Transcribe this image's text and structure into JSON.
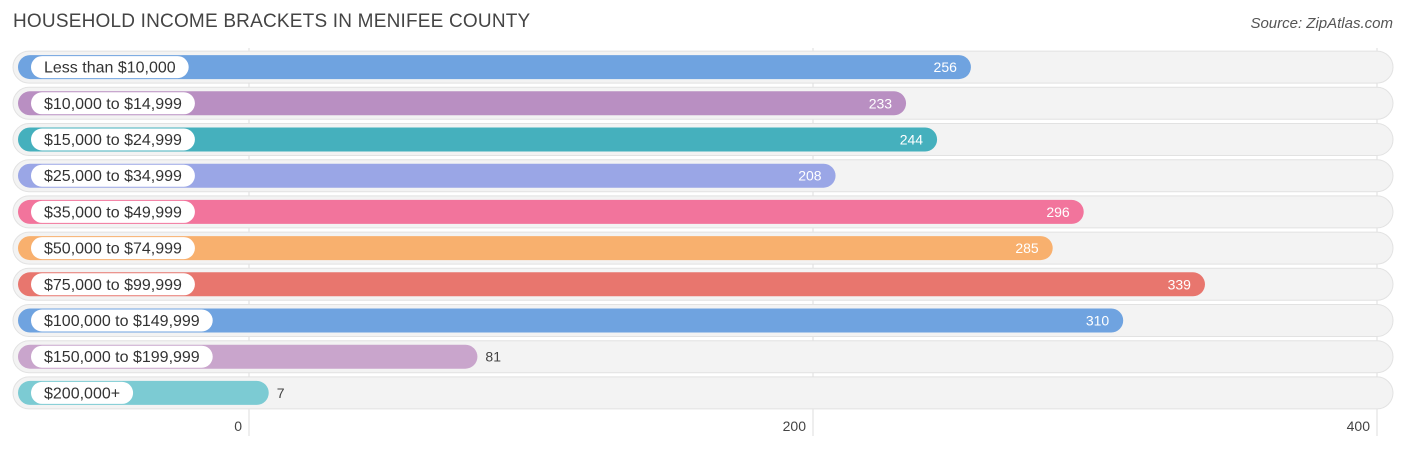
{
  "title": "HOUSEHOLD INCOME BRACKETS IN MENIFEE COUNTY",
  "source": "Source: ZipAtlas.com",
  "chart_data": {
    "type": "bar",
    "orientation": "horizontal",
    "title": "HOUSEHOLD INCOME BRACKETS IN MENIFEE COUNTY",
    "categories": [
      "Less than $10,000",
      "$10,000 to $14,999",
      "$15,000 to $24,999",
      "$25,000 to $34,999",
      "$35,000 to $49,999",
      "$50,000 to $74,999",
      "$75,000 to $99,999",
      "$100,000 to $149,999",
      "$150,000 to $199,999",
      "$200,000+"
    ],
    "values": [
      256,
      233,
      244,
      208,
      296,
      285,
      339,
      310,
      81,
      7
    ],
    "colors": [
      "#6fa3e0",
      "#b98fc2",
      "#45b0bd",
      "#9aa6e6",
      "#f2749c",
      "#f8b06e",
      "#e8766e",
      "#6fa3e0",
      "#c9a5cc",
      "#7ccbd3"
    ],
    "xlim": [
      0,
      400
    ],
    "xticks": [
      0,
      200,
      400
    ],
    "grid": true
  }
}
